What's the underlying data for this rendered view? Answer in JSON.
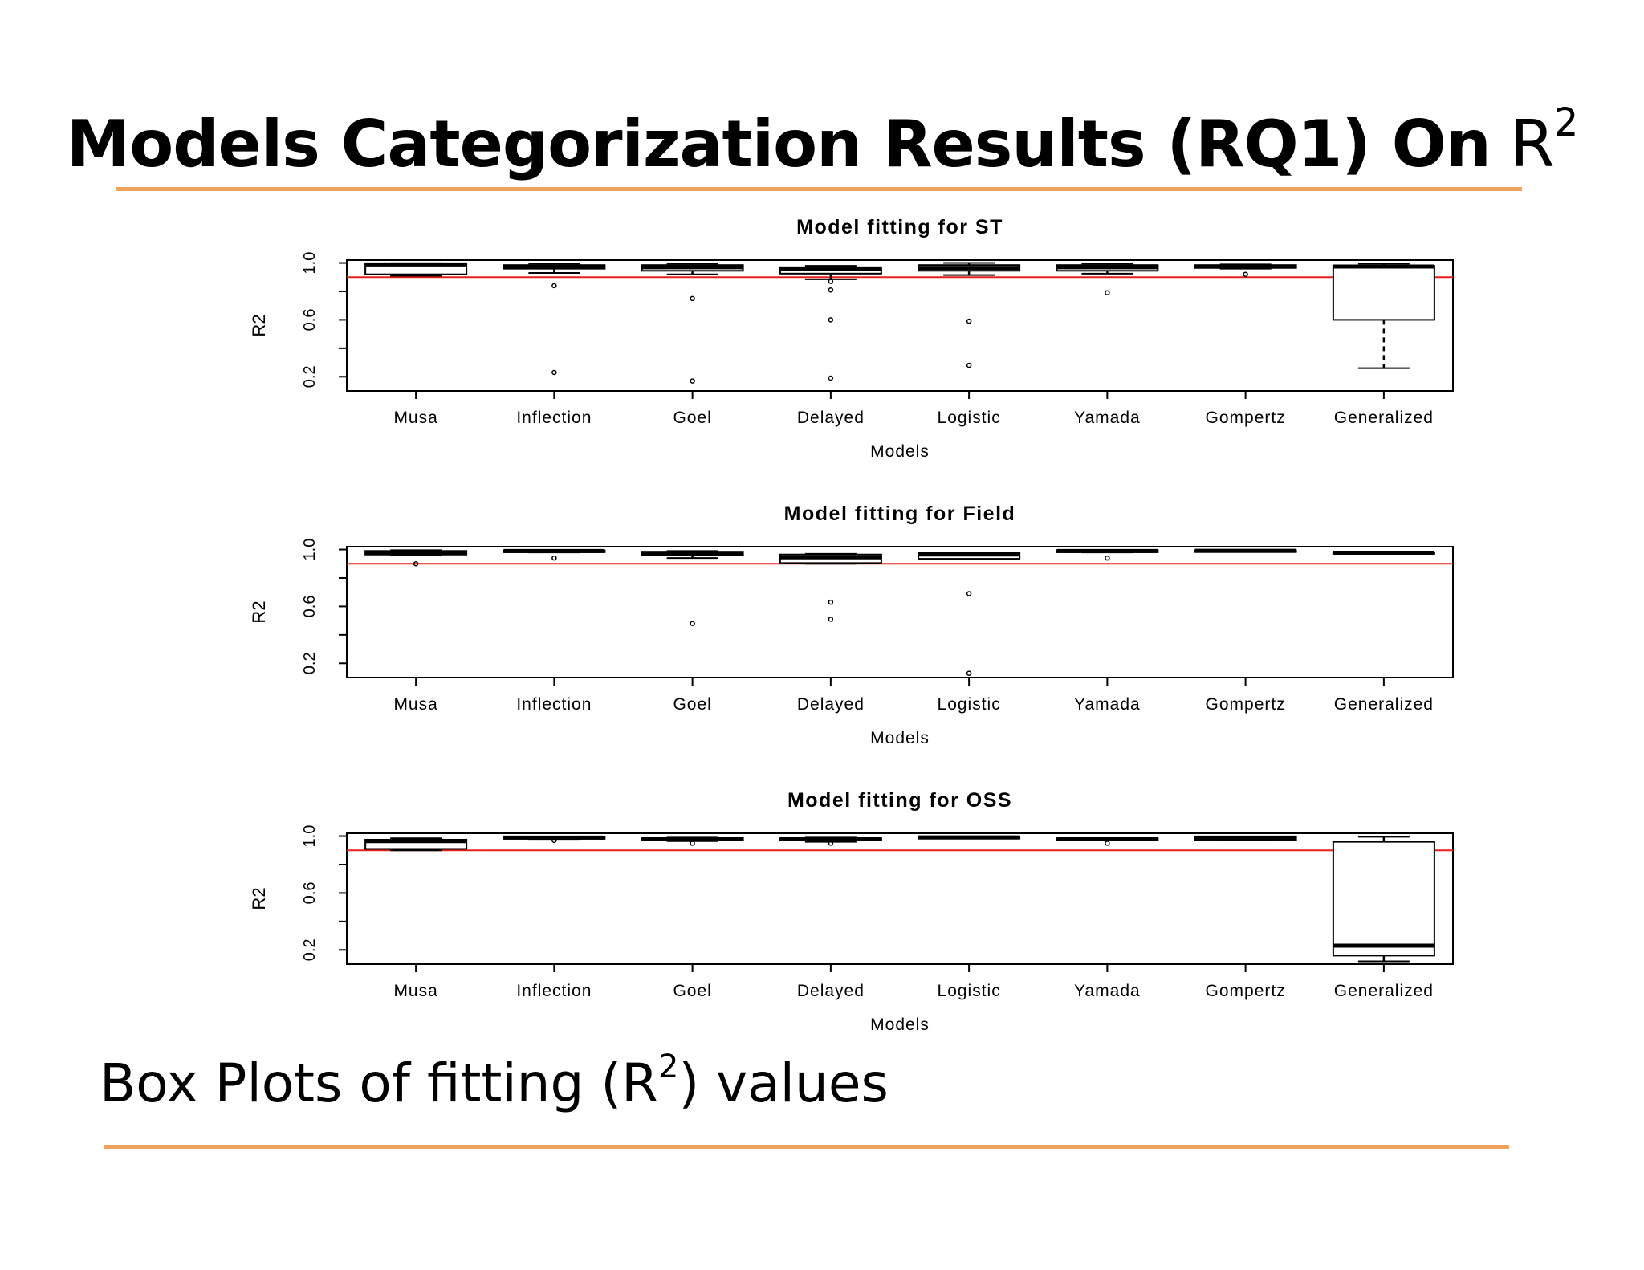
{
  "slide": {
    "title": "Models Categorization Results (RQ1) On",
    "title_r": "R",
    "title_sup": "2",
    "caption_before": "Box Plots of fitting (R",
    "caption_sup": "2",
    "caption_after": ") values",
    "accent_color": "#f0a35c"
  },
  "chart_data": [
    {
      "type": "box",
      "title": "Model fitting for ST",
      "xlabel": "Models",
      "ylabel": "R2",
      "ylim": [
        0.1,
        1.02
      ],
      "yticks": [
        "0.2",
        "0.6",
        "1.0"
      ],
      "reference_line": 0.9,
      "reference_color": "#e8201c",
      "categories": [
        "Musa",
        "Inflection",
        "Goel",
        "Delayed",
        "Logistic",
        "Yamada",
        "Gompertz",
        "Generalized"
      ],
      "boxes": [
        {
          "whisker_low": 0.91,
          "q1": 0.92,
          "median": 0.99,
          "q3": 0.995,
          "whisker_high": 0.998,
          "outliers": []
        },
        {
          "whisker_low": 0.93,
          "q1": 0.96,
          "median": 0.975,
          "q3": 0.985,
          "whisker_high": 0.995,
          "outliers": [
            0.84,
            0.23
          ]
        },
        {
          "whisker_low": 0.92,
          "q1": 0.945,
          "median": 0.97,
          "q3": 0.985,
          "whisker_high": 0.995,
          "outliers": [
            0.75,
            0.17
          ]
        },
        {
          "whisker_low": 0.885,
          "q1": 0.925,
          "median": 0.955,
          "q3": 0.97,
          "whisker_high": 0.98,
          "outliers": [
            0.87,
            0.81,
            0.6,
            0.19
          ]
        },
        {
          "whisker_low": 0.915,
          "q1": 0.945,
          "median": 0.965,
          "q3": 0.985,
          "whisker_high": 1.0,
          "outliers": [
            0.59,
            0.28
          ]
        },
        {
          "whisker_low": 0.925,
          "q1": 0.945,
          "median": 0.97,
          "q3": 0.985,
          "whisker_high": 0.995,
          "outliers": [
            0.79
          ]
        },
        {
          "whisker_low": 0.96,
          "q1": 0.965,
          "median": 0.975,
          "q3": 0.985,
          "whisker_high": 0.99,
          "outliers": [
            0.92
          ]
        },
        {
          "whisker_low": 0.26,
          "q1": 0.6,
          "median": 0.975,
          "q3": 0.98,
          "whisker_high": 0.995,
          "outliers": []
        }
      ]
    },
    {
      "type": "box",
      "title": "Model fitting for Field",
      "xlabel": "Models",
      "ylabel": "R2",
      "ylim": [
        0.1,
        1.02
      ],
      "yticks": [
        "0.2",
        "0.6",
        "1.0"
      ],
      "reference_line": 0.9,
      "reference_color": "#e8201c",
      "categories": [
        "Musa",
        "Inflection",
        "Goel",
        "Delayed",
        "Logistic",
        "Yamada",
        "Gompertz",
        "Generalized"
      ],
      "boxes": [
        {
          "whisker_low": 0.96,
          "q1": 0.965,
          "median": 0.98,
          "q3": 0.99,
          "whisker_high": 0.995,
          "outliers": [
            0.9
          ]
        },
        {
          "whisker_low": 0.98,
          "q1": 0.985,
          "median": 0.99,
          "q3": 0.993,
          "whisker_high": 0.996,
          "outliers": [
            0.94
          ]
        },
        {
          "whisker_low": 0.94,
          "q1": 0.96,
          "median": 0.975,
          "q3": 0.985,
          "whisker_high": 0.99,
          "outliers": [
            0.48
          ]
        },
        {
          "whisker_low": 0.9,
          "q1": 0.905,
          "median": 0.945,
          "q3": 0.965,
          "whisker_high": 0.97,
          "outliers": [
            0.63,
            0.51
          ]
        },
        {
          "whisker_low": 0.93,
          "q1": 0.935,
          "median": 0.965,
          "q3": 0.975,
          "whisker_high": 0.98,
          "outliers": [
            0.69,
            0.13
          ]
        },
        {
          "whisker_low": 0.98,
          "q1": 0.985,
          "median": 0.99,
          "q3": 0.993,
          "whisker_high": 0.996,
          "outliers": [
            0.94
          ]
        },
        {
          "whisker_low": 0.985,
          "q1": 0.988,
          "median": 0.991,
          "q3": 0.994,
          "whisker_high": 0.997,
          "outliers": []
        },
        {
          "whisker_low": 0.972,
          "q1": 0.975,
          "median": 0.978,
          "q3": 0.981,
          "whisker_high": 0.984,
          "outliers": []
        }
      ]
    },
    {
      "type": "box",
      "title": "Model fitting for OSS",
      "xlabel": "Models",
      "ylabel": "R2",
      "ylim": [
        0.1,
        1.02
      ],
      "yticks": [
        "0.2",
        "0.6",
        "1.0"
      ],
      "reference_line": 0.9,
      "reference_color": "#e8201c",
      "categories": [
        "Musa",
        "Inflection",
        "Goel",
        "Delayed",
        "Logistic",
        "Yamada",
        "Gompertz",
        "Generalized"
      ],
      "boxes": [
        {
          "whisker_low": 0.9,
          "q1": 0.91,
          "median": 0.965,
          "q3": 0.975,
          "whisker_high": 0.985,
          "outliers": []
        },
        {
          "whisker_low": 0.98,
          "q1": 0.985,
          "median": 0.99,
          "q3": 0.993,
          "whisker_high": 0.996,
          "outliers": [
            0.97
          ]
        },
        {
          "whisker_low": 0.965,
          "q1": 0.97,
          "median": 0.978,
          "q3": 0.985,
          "whisker_high": 0.99,
          "outliers": [
            0.95
          ]
        },
        {
          "whisker_low": 0.96,
          "q1": 0.97,
          "median": 0.978,
          "q3": 0.985,
          "whisker_high": 0.99,
          "outliers": [
            0.95
          ]
        },
        {
          "whisker_low": 0.985,
          "q1": 0.988,
          "median": 0.991,
          "q3": 0.994,
          "whisker_high": 0.997,
          "outliers": []
        },
        {
          "whisker_low": 0.97,
          "q1": 0.972,
          "median": 0.978,
          "q3": 0.983,
          "whisker_high": 0.986,
          "outliers": [
            0.95
          ]
        },
        {
          "whisker_low": 0.97,
          "q1": 0.975,
          "median": 0.99,
          "q3": 0.993,
          "whisker_high": 0.996,
          "outliers": []
        },
        {
          "whisker_low": 0.12,
          "q1": 0.16,
          "median": 0.23,
          "q3": 0.96,
          "whisker_high": 0.995,
          "outliers": []
        }
      ]
    }
  ]
}
